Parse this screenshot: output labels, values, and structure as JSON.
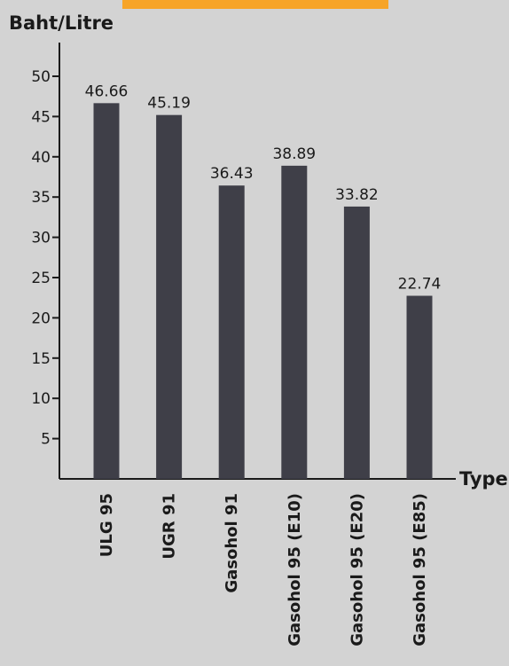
{
  "colors": {
    "background": "#d3d3d3",
    "bar": "#3f3f48",
    "axis": "#1a1a1a",
    "accent_band": "#f7a428"
  },
  "chart_data": {
    "type": "bar",
    "categories": [
      "ULG 95",
      "UGR 91",
      "Gasohol 91",
      "Gasohol 95 (E10)",
      "Gasohol 95 (E20)",
      "Gasohol 95 (E85)"
    ],
    "values": [
      46.66,
      45.19,
      36.43,
      38.89,
      33.82,
      22.74
    ],
    "data_labels": [
      "46.66",
      "45.19",
      "36.43",
      "38.89",
      "33.82",
      "22.74"
    ],
    "title": "",
    "xlabel": "Type",
    "ylabel": "Baht/Litre",
    "yticks": [
      5,
      10,
      15,
      20,
      25,
      30,
      35,
      40,
      45,
      50
    ],
    "ytick_labels": [
      "5",
      "10",
      "15",
      "20",
      "25",
      "30",
      "35",
      "40",
      "45",
      "50"
    ],
    "ylim": [
      0,
      50
    ],
    "grid": false,
    "legend": "none"
  }
}
